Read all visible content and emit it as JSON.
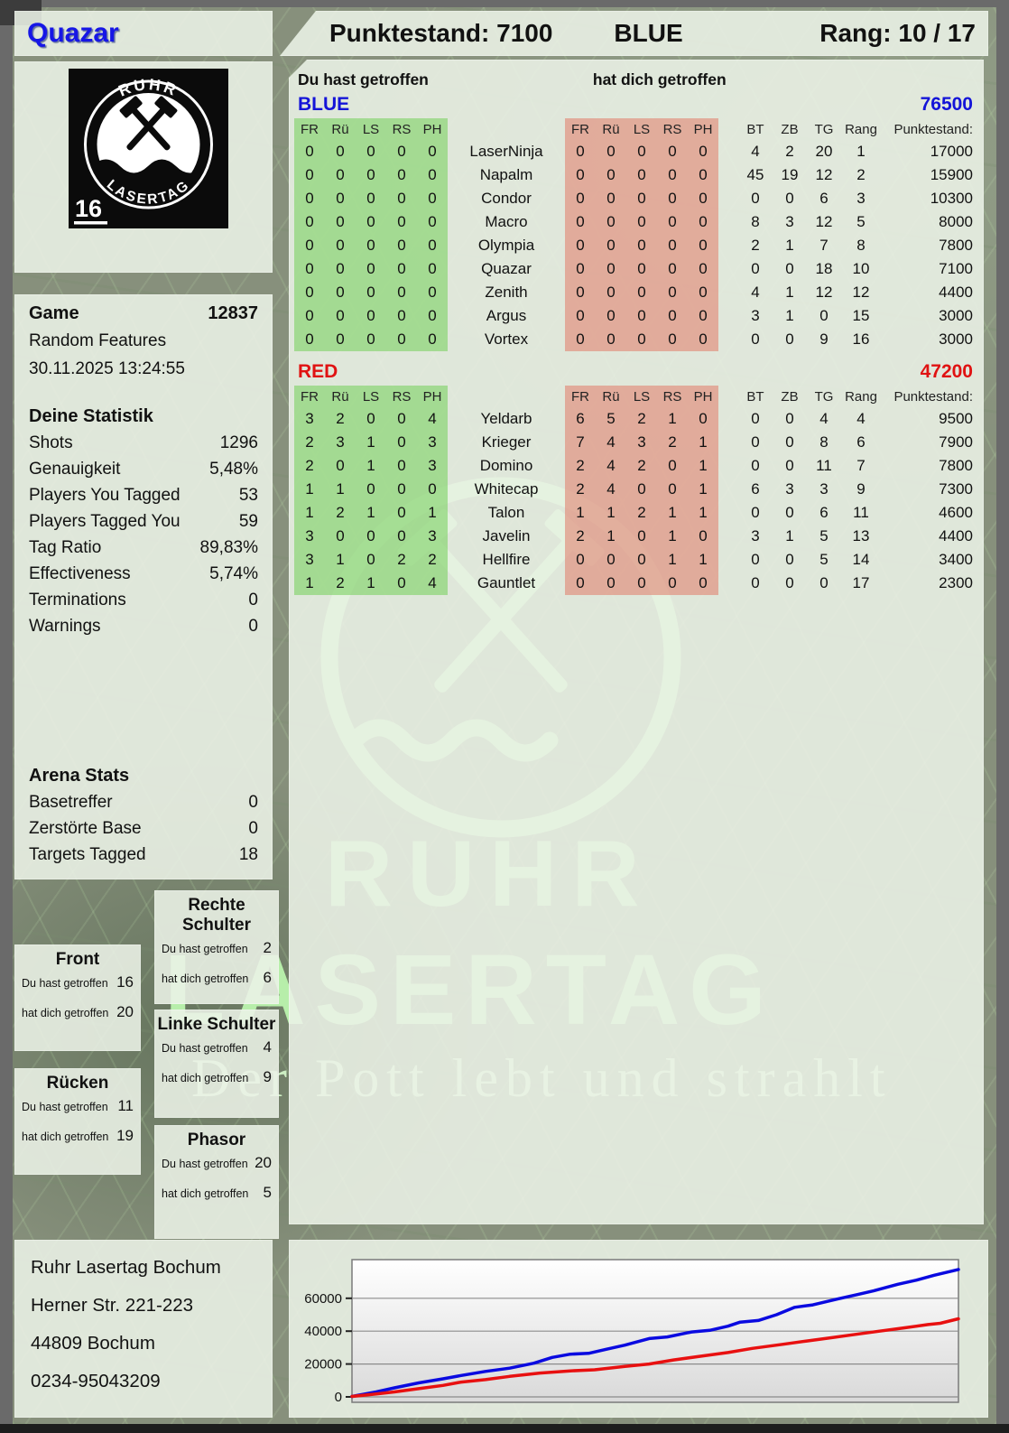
{
  "header": {
    "player": "Quazar",
    "score_label": "Punktestand: 7100",
    "team": "BLUE",
    "rank_label": "Rang: 10 / 17"
  },
  "logo": {
    "arc_top": "RUHR",
    "arc_bottom": "LASERTAG",
    "number": "16"
  },
  "watermark": {
    "line1": "RUHR",
    "line2": "LASERTAG",
    "tagline": "Der Pott lebt und strahlt",
    "color": "#b7eeaa"
  },
  "hit_labels": {
    "you": "Du hast getroffen",
    "them": "hat dich getroffen"
  },
  "sidebar": {
    "game": {
      "label": "Game",
      "id": "12837",
      "mode": "Random Features",
      "datetime": "30.11.2025 13:24:55"
    },
    "stats_title": "Deine Statistik",
    "stats_rows": [
      [
        "Shots",
        "1296"
      ],
      [
        "Genauigkeit",
        "5,48%"
      ],
      [
        "Players You Tagged",
        "53"
      ],
      [
        "Players Tagged You",
        "59"
      ],
      [
        "Tag Ratio",
        "89,83%"
      ],
      [
        "Effectiveness",
        "5,74%"
      ],
      [
        "Terminations",
        "0"
      ],
      [
        "Warnings",
        "0"
      ]
    ],
    "arena_title": "Arena Stats",
    "arena_rows": [
      [
        "Basetreffer",
        "0"
      ],
      [
        "Zerstörte Base",
        "0"
      ],
      [
        "Targets Tagged",
        "18"
      ]
    ]
  },
  "hitboxes": [
    {
      "title": "Front",
      "you": "16",
      "them": "20"
    },
    {
      "title": "Rücken",
      "you": "11",
      "them": "19"
    },
    {
      "title": "Rechte Schulter",
      "you": "2",
      "them": "6"
    },
    {
      "title": "Linke Schulter",
      "you": "4",
      "them": "9"
    },
    {
      "title": "Phasor",
      "you": "20",
      "them": "5"
    }
  ],
  "main_table": {
    "hit_cols": [
      "FR",
      "Rü",
      "LS",
      "RS",
      "PH"
    ],
    "stat_cols": [
      "BT",
      "ZB",
      "TG",
      "Rang"
    ],
    "points_col": "Punktestand:",
    "teams": [
      {
        "name": "BLUE",
        "color": "#1414d8",
        "total": "76500",
        "players": [
          {
            "name": "LaserNinja",
            "given": [
              "0",
              "0",
              "0",
              "0",
              "0"
            ],
            "taken": [
              "0",
              "0",
              "0",
              "0",
              "0"
            ],
            "stats": [
              "4",
              "2",
              "20",
              "1"
            ],
            "points": "17000"
          },
          {
            "name": "Napalm",
            "given": [
              "0",
              "0",
              "0",
              "0",
              "0"
            ],
            "taken": [
              "0",
              "0",
              "0",
              "0",
              "0"
            ],
            "stats": [
              "45",
              "19",
              "12",
              "2"
            ],
            "points": "15900"
          },
          {
            "name": "Condor",
            "given": [
              "0",
              "0",
              "0",
              "0",
              "0"
            ],
            "taken": [
              "0",
              "0",
              "0",
              "0",
              "0"
            ],
            "stats": [
              "0",
              "0",
              "6",
              "3"
            ],
            "points": "10300"
          },
          {
            "name": "Macro",
            "given": [
              "0",
              "0",
              "0",
              "0",
              "0"
            ],
            "taken": [
              "0",
              "0",
              "0",
              "0",
              "0"
            ],
            "stats": [
              "8",
              "3",
              "12",
              "5"
            ],
            "points": "8000"
          },
          {
            "name": "Olympia",
            "given": [
              "0",
              "0",
              "0",
              "0",
              "0"
            ],
            "taken": [
              "0",
              "0",
              "0",
              "0",
              "0"
            ],
            "stats": [
              "2",
              "1",
              "7",
              "8"
            ],
            "points": "7800"
          },
          {
            "name": "Quazar",
            "given": [
              "0",
              "0",
              "0",
              "0",
              "0"
            ],
            "taken": [
              "0",
              "0",
              "0",
              "0",
              "0"
            ],
            "stats": [
              "0",
              "0",
              "18",
              "10"
            ],
            "points": "7100"
          },
          {
            "name": "Zenith",
            "given": [
              "0",
              "0",
              "0",
              "0",
              "0"
            ],
            "taken": [
              "0",
              "0",
              "0",
              "0",
              "0"
            ],
            "stats": [
              "4",
              "1",
              "12",
              "12"
            ],
            "points": "4400"
          },
          {
            "name": "Argus",
            "given": [
              "0",
              "0",
              "0",
              "0",
              "0"
            ],
            "taken": [
              "0",
              "0",
              "0",
              "0",
              "0"
            ],
            "stats": [
              "3",
              "1",
              "0",
              "15"
            ],
            "points": "3000"
          },
          {
            "name": "Vortex",
            "given": [
              "0",
              "0",
              "0",
              "0",
              "0"
            ],
            "taken": [
              "0",
              "0",
              "0",
              "0",
              "0"
            ],
            "stats": [
              "0",
              "0",
              "9",
              "16"
            ],
            "points": "3000"
          }
        ]
      },
      {
        "name": "RED",
        "color": "#e01212",
        "total": "47200",
        "players": [
          {
            "name": "Yeldarb",
            "given": [
              "3",
              "2",
              "0",
              "0",
              "4"
            ],
            "taken": [
              "6",
              "5",
              "2",
              "1",
              "0"
            ],
            "stats": [
              "0",
              "0",
              "4",
              "4"
            ],
            "points": "9500"
          },
          {
            "name": "Krieger",
            "given": [
              "2",
              "3",
              "1",
              "0",
              "3"
            ],
            "taken": [
              "7",
              "4",
              "3",
              "2",
              "1"
            ],
            "stats": [
              "0",
              "0",
              "8",
              "6"
            ],
            "points": "7900"
          },
          {
            "name": "Domino",
            "given": [
              "2",
              "0",
              "1",
              "0",
              "3"
            ],
            "taken": [
              "2",
              "4",
              "2",
              "0",
              "1"
            ],
            "stats": [
              "0",
              "0",
              "11",
              "7"
            ],
            "points": "7800"
          },
          {
            "name": "Whitecap",
            "given": [
              "1",
              "1",
              "0",
              "0",
              "0"
            ],
            "taken": [
              "2",
              "4",
              "0",
              "0",
              "1"
            ],
            "stats": [
              "6",
              "3",
              "3",
              "9"
            ],
            "points": "7300"
          },
          {
            "name": "Talon",
            "given": [
              "1",
              "2",
              "1",
              "0",
              "1"
            ],
            "taken": [
              "1",
              "1",
              "2",
              "1",
              "1"
            ],
            "stats": [
              "0",
              "0",
              "6",
              "11"
            ],
            "points": "4600"
          },
          {
            "name": "Javelin",
            "given": [
              "3",
              "0",
              "0",
              "0",
              "3"
            ],
            "taken": [
              "2",
              "1",
              "0",
              "1",
              "0"
            ],
            "stats": [
              "3",
              "1",
              "5",
              "13"
            ],
            "points": "4400"
          },
          {
            "name": "Hellfire",
            "given": [
              "3",
              "1",
              "0",
              "2",
              "2"
            ],
            "taken": [
              "0",
              "0",
              "0",
              "1",
              "1"
            ],
            "stats": [
              "0",
              "0",
              "5",
              "14"
            ],
            "points": "3400"
          },
          {
            "name": "Gauntlet",
            "given": [
              "1",
              "2",
              "1",
              "0",
              "4"
            ],
            "taken": [
              "0",
              "0",
              "0",
              "0",
              "0"
            ],
            "stats": [
              "0",
              "0",
              "0",
              "17"
            ],
            "points": "2300"
          }
        ]
      }
    ]
  },
  "footer": {
    "address": [
      "Ruhr Lasertag Bochum",
      "Herner Str. 221-223",
      "44809 Bochum",
      "0234-95043209"
    ]
  },
  "chart_data": {
    "type": "line",
    "title": "",
    "xlabel": "",
    "ylabel": "",
    "ylim": [
      0,
      83000
    ],
    "yticks": [
      0,
      20000,
      40000,
      60000
    ],
    "grid": true,
    "legend_position": "none",
    "series": [
      {
        "name": "BLUE",
        "color": "#0a0ae0",
        "x": [
          0,
          4,
          7,
          11,
          15,
          18,
          22,
          26,
          30,
          33,
          36,
          39,
          42,
          45,
          49,
          52,
          56,
          59,
          62,
          64,
          67,
          70,
          73,
          76,
          80,
          83,
          86,
          90,
          93,
          96,
          100
        ],
        "values": [
          300,
          3000,
          5500,
          8500,
          11000,
          13000,
          15500,
          17500,
          20500,
          24000,
          26000,
          26500,
          29000,
          31500,
          35500,
          36500,
          39500,
          40500,
          43000,
          45500,
          46500,
          50000,
          54500,
          56000,
          59500,
          62000,
          64500,
          68500,
          71000,
          74000,
          77500
        ]
      },
      {
        "name": "RED",
        "color": "#e81010",
        "x": [
          0,
          4,
          7,
          11,
          15,
          18,
          22,
          26,
          31,
          36,
          40,
          45,
          49,
          53,
          58,
          62,
          66,
          71,
          75,
          79,
          83,
          87,
          91,
          95,
          97,
          100
        ],
        "values": [
          300,
          1800,
          3000,
          5000,
          7000,
          9000,
          10500,
          12500,
          14500,
          15800,
          16500,
          18500,
          20000,
          22500,
          25000,
          27000,
          29500,
          32000,
          34000,
          36000,
          38000,
          40000,
          42000,
          44000,
          44800,
          47500
        ]
      }
    ]
  }
}
